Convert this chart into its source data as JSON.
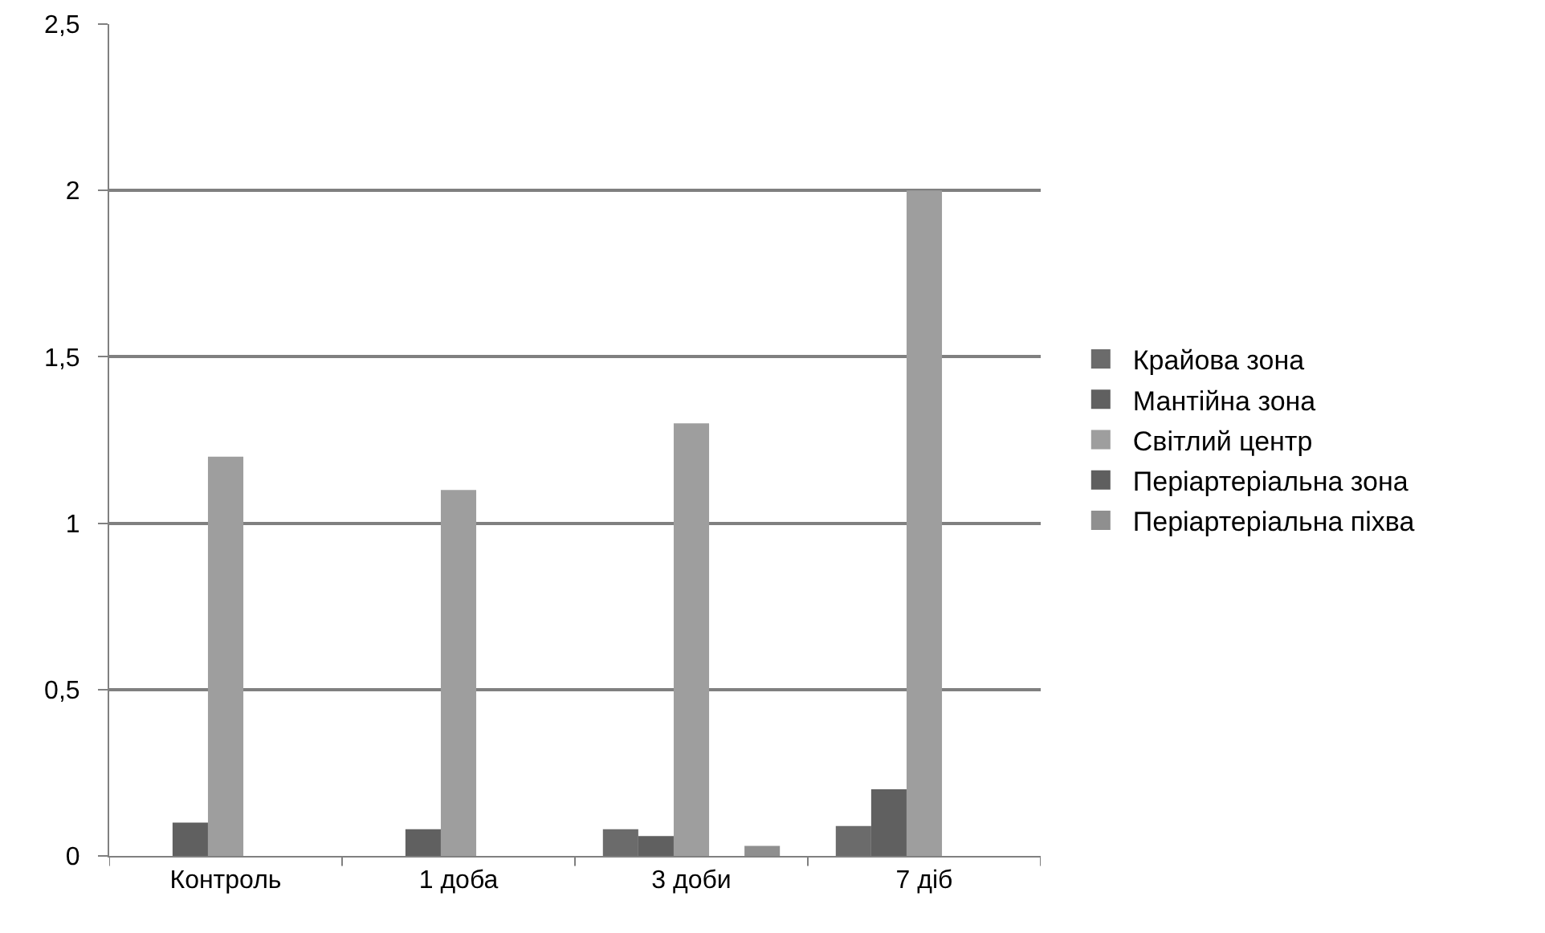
{
  "chart_data": {
    "type": "bar",
    "categories": [
      "Контроль",
      "1 доба",
      "3 доби",
      "7 діб"
    ],
    "series": [
      {
        "name": "Крайова зона",
        "color": "#6b6b6b",
        "values": [
          0,
          0,
          0.08,
          0.09
        ]
      },
      {
        "name": "Мантійна зона",
        "color": "#606060",
        "values": [
          0.1,
          0.08,
          0.06,
          0.2
        ]
      },
      {
        "name": "Світлий центр",
        "color": "#9e9e9e",
        "values": [
          1.2,
          1.1,
          1.3,
          2.0
        ]
      },
      {
        "name": "Періартеріальна зона",
        "color": "#5f5f5f",
        "values": [
          0,
          0,
          0,
          0
        ]
      },
      {
        "name": "Періартеріальна піхва",
        "color": "#8f8f8f",
        "values": [
          0,
          0,
          0.03,
          0
        ]
      }
    ],
    "ylim": [
      0,
      2.5
    ],
    "yticks": [
      0,
      {
        "value": 0.5,
        "label": "0,5"
      },
      1,
      {
        "value": 1.5,
        "label": "1,5"
      },
      2,
      {
        "value": 2.5,
        "label": "2,5"
      }
    ],
    "grid": "y",
    "legend": "right"
  }
}
